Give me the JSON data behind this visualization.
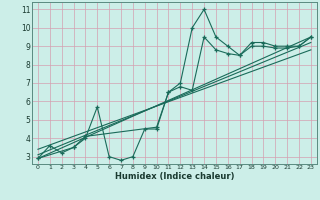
{
  "xlabel": "Humidex (Indice chaleur)",
  "bg_color": "#cceee8",
  "grid_color": "#d4a0b0",
  "line_color": "#1a6b5a",
  "xlim": [
    -0.5,
    23.5
  ],
  "ylim": [
    2.6,
    11.4
  ],
  "xticks": [
    0,
    1,
    2,
    3,
    4,
    5,
    6,
    7,
    8,
    9,
    10,
    11,
    12,
    13,
    14,
    15,
    16,
    17,
    18,
    19,
    20,
    21,
    22,
    23
  ],
  "yticks": [
    3,
    4,
    5,
    6,
    7,
    8,
    9,
    10,
    11
  ],
  "series1_x": [
    0,
    1,
    2,
    3,
    4,
    5,
    6,
    7,
    8,
    9,
    10,
    11,
    12,
    13,
    14,
    15,
    16,
    17,
    18,
    19,
    20,
    21,
    22,
    23
  ],
  "series1_y": [
    2.9,
    3.6,
    3.2,
    3.5,
    4.0,
    5.7,
    3.0,
    2.8,
    3.0,
    4.5,
    4.5,
    6.5,
    7.0,
    10.0,
    11.0,
    9.5,
    9.0,
    8.5,
    9.2,
    9.2,
    9.0,
    9.0,
    9.0,
    9.5
  ],
  "series2_x": [
    0,
    3,
    4,
    10,
    11,
    12,
    13,
    14,
    15,
    16,
    17,
    18,
    19,
    20,
    21,
    22,
    23
  ],
  "series2_y": [
    2.9,
    3.5,
    4.1,
    4.6,
    6.5,
    6.8,
    6.6,
    9.5,
    8.8,
    8.6,
    8.5,
    9.0,
    9.0,
    8.9,
    8.9,
    9.0,
    9.5
  ],
  "reg_lines": [
    {
      "x": [
        0,
        23
      ],
      "y": [
        2.9,
        9.5
      ]
    },
    {
      "x": [
        0,
        23
      ],
      "y": [
        3.1,
        9.2
      ]
    },
    {
      "x": [
        0,
        23
      ],
      "y": [
        3.4,
        8.8
      ]
    }
  ]
}
